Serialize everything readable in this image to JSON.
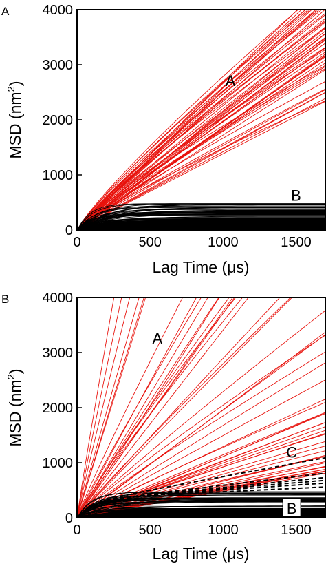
{
  "chart_data": [
    {
      "type": "line",
      "panel_label": "A",
      "xlabel": "Lag Time (μs)",
      "ylabel_main": "MSD (nm",
      "ylabel_sup": "2",
      "ylabel_close": ")",
      "xlim": [
        0,
        1700
      ],
      "ylim": [
        0,
        4000
      ],
      "xticks": [
        0,
        500,
        1000,
        1500
      ],
      "yticks": [
        0,
        1000,
        2000,
        3000,
        4000
      ],
      "annotations": [
        {
          "text": "A",
          "x": 1050,
          "y": 2700
        },
        {
          "text": "B",
          "x": 1500,
          "y": 620
        }
      ],
      "series": [
        {
          "group": "A",
          "color": "#e8120c",
          "style": "solid",
          "count": 55,
          "shape": "nearly linear",
          "final_msd_range": [
            2300,
            4500
          ],
          "curvature_range": [
            0.86,
            1.02
          ]
        },
        {
          "group": "B",
          "color": "#000000",
          "style": "solid",
          "count": 60,
          "shape": "plateau",
          "plateau_range": [
            10,
            480
          ]
        }
      ]
    },
    {
      "type": "line",
      "panel_label": "B",
      "xlabel": "Lag Time (μs)",
      "ylabel_main": "MSD (nm",
      "ylabel_sup": "2",
      "ylabel_close": ")",
      "xlim": [
        0,
        1700
      ],
      "ylim": [
        0,
        4000
      ],
      "xticks": [
        0,
        500,
        1000,
        1500
      ],
      "yticks": [
        0,
        1000,
        2000,
        3000,
        4000
      ],
      "annotations": [
        {
          "text": "A",
          "x": 550,
          "y": 3250
        },
        {
          "text": "C",
          "x": 1470,
          "y": 1180
        },
        {
          "text": "B",
          "x": 1470,
          "y": 160,
          "boxed": true
        }
      ],
      "series": [
        {
          "group": "A",
          "color": "#e8120c",
          "style": "solid",
          "count": 55,
          "shape": "linear fan",
          "final_msd_range": [
            800,
            26000
          ]
        },
        {
          "group": "B",
          "color": "#000000",
          "style": "solid",
          "count": 60,
          "shape": "plateau",
          "plateau_range": [
            10,
            500
          ]
        },
        {
          "group": "C",
          "color": "#000000",
          "style": "dashed",
          "count": 6,
          "shape": "slowly rising",
          "final_msd_values": [
            1090,
            810,
            730,
            680,
            630,
            560
          ]
        }
      ]
    }
  ]
}
